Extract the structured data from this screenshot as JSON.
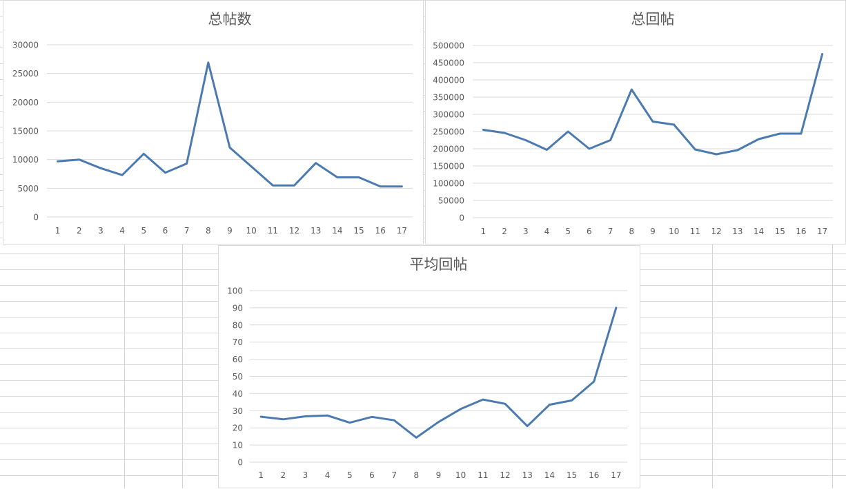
{
  "chart_data": [
    {
      "type": "line",
      "title": "总帖数",
      "categories": [
        "1",
        "2",
        "3",
        "4",
        "5",
        "6",
        "7",
        "8",
        "9",
        "10",
        "11",
        "12",
        "13",
        "14",
        "15",
        "16",
        "17"
      ],
      "values": [
        9700,
        10000,
        8500,
        7300,
        11000,
        7700,
        9300,
        26900,
        12100,
        8800,
        5500,
        5500,
        9400,
        6900,
        6900,
        5300,
        5300
      ],
      "ylim": [
        0,
        30000
      ],
      "yticks": [
        "0",
        "5000",
        "10000",
        "15000",
        "20000",
        "25000",
        "30000"
      ],
      "grid": true,
      "legend": "none",
      "color": "#4a7ab0"
    },
    {
      "type": "line",
      "title": "总回帖",
      "categories": [
        "1",
        "2",
        "3",
        "4",
        "5",
        "6",
        "7",
        "8",
        "9",
        "10",
        "11",
        "12",
        "13",
        "14",
        "15",
        "16",
        "17"
      ],
      "values": [
        255000,
        246000,
        225000,
        197000,
        250000,
        200000,
        225000,
        372000,
        279000,
        270000,
        198000,
        184000,
        196000,
        228000,
        244000,
        244000,
        475000
      ],
      "ylim": [
        0,
        500000
      ],
      "yticks": [
        "0",
        "50000",
        "100000",
        "150000",
        "200000",
        "250000",
        "300000",
        "350000",
        "400000",
        "450000",
        "500000"
      ],
      "grid": true,
      "legend": "none",
      "color": "#4a7ab0"
    },
    {
      "type": "line",
      "title": "平均回帖",
      "categories": [
        "1",
        "2",
        "3",
        "4",
        "5",
        "6",
        "7",
        "8",
        "9",
        "10",
        "11",
        "12",
        "13",
        "14",
        "15",
        "16",
        "17"
      ],
      "values": [
        26.5,
        25,
        26.7,
        27.2,
        23,
        26.4,
        24.4,
        14.3,
        23.4,
        31,
        36.5,
        34,
        21,
        33.5,
        36,
        47,
        90
      ],
      "ylim": [
        0,
        100
      ],
      "yticks": [
        "0",
        "10",
        "20",
        "30",
        "40",
        "50",
        "60",
        "70",
        "80",
        "90",
        "100"
      ],
      "grid": true,
      "legend": "none",
      "color": "#4a7ab0"
    }
  ]
}
